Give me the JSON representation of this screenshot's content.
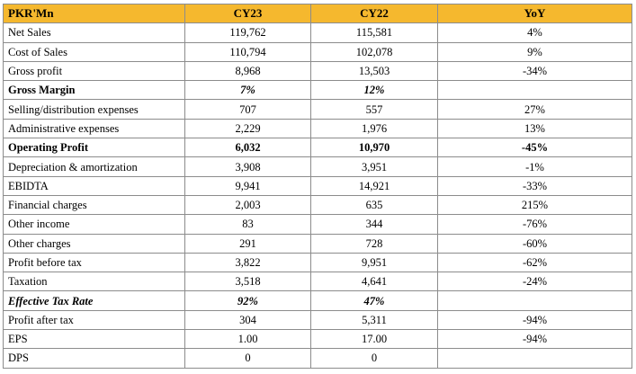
{
  "table": {
    "headers": [
      "PKR'Mn",
      "CY23",
      "CY22",
      "YoY"
    ],
    "rows": [
      {
        "label": "Net Sales",
        "cy23": "119,762",
        "cy22": "115,581",
        "yoy": "4%",
        "style": ""
      },
      {
        "label": "Cost of Sales",
        "cy23": "110,794",
        "cy22": "102,078",
        "yoy": "9%",
        "style": ""
      },
      {
        "label": "Gross profit",
        "cy23": "8,968",
        "cy22": "13,503",
        "yoy": "-34%",
        "style": ""
      },
      {
        "label": "Gross Margin",
        "cy23": "7%",
        "cy22": "12%",
        "yoy": "",
        "style": "bold-label-italic-values"
      },
      {
        "label": "Selling/distribution expenses",
        "cy23": "707",
        "cy22": "557",
        "yoy": "27%",
        "style": ""
      },
      {
        "label": "Administrative expenses",
        "cy23": "2,229",
        "cy22": "1,976",
        "yoy": "13%",
        "style": ""
      },
      {
        "label": "Operating Profit",
        "cy23": "6,032",
        "cy22": "10,970",
        "yoy": "-45%",
        "style": "bold"
      },
      {
        "label": "Depreciation & amortization",
        "cy23": "3,908",
        "cy22": "3,951",
        "yoy": "-1%",
        "style": ""
      },
      {
        "label": "EBIDTA",
        "cy23": "9,941",
        "cy22": "14,921",
        "yoy": "-33%",
        "style": ""
      },
      {
        "label": "Financial charges",
        "cy23": "2,003",
        "cy22": "635",
        "yoy": "215%",
        "style": ""
      },
      {
        "label": "Other income",
        "cy23": "83",
        "cy22": "344",
        "yoy": "-76%",
        "style": ""
      },
      {
        "label": "Other charges",
        "cy23": "291",
        "cy22": "728",
        "yoy": "-60%",
        "style": ""
      },
      {
        "label": "Profit before tax",
        "cy23": "3,822",
        "cy22": "9,951",
        "yoy": "-62%",
        "style": ""
      },
      {
        "label": "Taxation",
        "cy23": "3,518",
        "cy22": "4,641",
        "yoy": "-24%",
        "style": ""
      },
      {
        "label": "Effective Tax Rate",
        "cy23": "92%",
        "cy22": "47%",
        "yoy": "",
        "style": "bold-italic"
      },
      {
        "label": "Profit after tax",
        "cy23": "304",
        "cy22": "5,311",
        "yoy": "-94%",
        "style": ""
      },
      {
        "label": "EPS",
        "cy23": "1.00",
        "cy22": "17.00",
        "yoy": "-94%",
        "style": ""
      },
      {
        "label": "DPS",
        "cy23": "0",
        "cy22": "0",
        "yoy": "",
        "style": ""
      }
    ]
  },
  "colors": {
    "header_bg": "#f5b82e",
    "border": "#8c8c8c"
  }
}
